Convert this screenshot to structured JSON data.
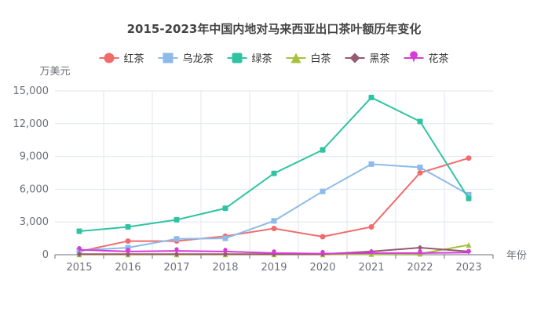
{
  "chart_data": {
    "type": "line",
    "title": "2015-2023年中国内地对马来西亚出口茶叶额历年变化",
    "xlabel": "年份",
    "ylabel": "万美元",
    "ylim": [
      0,
      15000
    ],
    "yticks": [
      0,
      3000,
      6000,
      9000,
      12000,
      15000
    ],
    "ytick_labels": [
      "0",
      "3,000",
      "6,000",
      "9,000",
      "12,000",
      "15,000"
    ],
    "categories": [
      "2015",
      "2016",
      "2017",
      "2018",
      "2019",
      "2020",
      "2021",
      "2022",
      "2023"
    ],
    "grid": true,
    "legend_position": "top",
    "series": [
      {
        "name": "红茶",
        "color": "#f26b6b",
        "marker": "circle",
        "values": [
          300,
          1250,
          1250,
          1700,
          2400,
          1650,
          2550,
          7500,
          8850
        ]
      },
      {
        "name": "乌龙茶",
        "color": "#8cbbe9",
        "marker": "rect",
        "values": [
          400,
          650,
          1450,
          1500,
          3100,
          5800,
          8300,
          8000,
          5500
        ]
      },
      {
        "name": "绿茶",
        "color": "#2ec4a2",
        "marker": "roundRect",
        "values": [
          2150,
          2550,
          3200,
          4250,
          7450,
          9600,
          14400,
          12200,
          5150
        ]
      },
      {
        "name": "白茶",
        "color": "#a7c23a",
        "marker": "triangle",
        "values": [
          20,
          20,
          20,
          20,
          20,
          20,
          50,
          80,
          900
        ]
      },
      {
        "name": "黑茶",
        "color": "#96596e",
        "marker": "diamond",
        "values": [
          50,
          50,
          50,
          50,
          50,
          50,
          300,
          650,
          300
        ]
      },
      {
        "name": "花茶",
        "color": "#d63bd6",
        "marker": "pin",
        "values": [
          450,
          300,
          350,
          300,
          150,
          100,
          150,
          150,
          200
        ]
      }
    ]
  }
}
